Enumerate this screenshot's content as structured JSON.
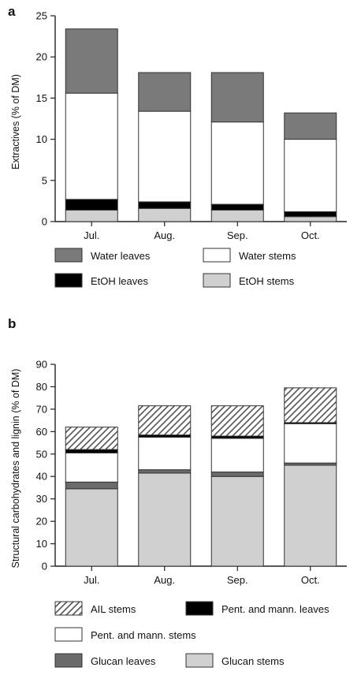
{
  "chart_data": [
    {
      "panel": "a",
      "type": "bar",
      "stacked": true,
      "categories": [
        "Jul.",
        "Aug.",
        "Sep.",
        "Oct."
      ],
      "ylabel": "Extractives (% of DM)",
      "ylim": [
        0,
        25
      ],
      "yticks": [
        0,
        5,
        10,
        15,
        20,
        25
      ],
      "series": [
        {
          "name": "EtOH stems",
          "values": [
            1.4,
            1.6,
            1.4,
            0.6
          ],
          "color": "#d0d0d0",
          "pattern": "solid"
        },
        {
          "name": "EtOH leaves",
          "values": [
            1.3,
            0.8,
            0.7,
            0.6
          ],
          "color": "#000000",
          "pattern": "solid"
        },
        {
          "name": "Water stems",
          "values": [
            12.9,
            11.0,
            10.0,
            8.8
          ],
          "color": "#ffffff",
          "pattern": "solid"
        },
        {
          "name": "Water leaves",
          "values": [
            7.8,
            4.7,
            6.0,
            3.2
          ],
          "color": "#7a7a7a",
          "pattern": "solid"
        }
      ],
      "legend_order": [
        "Water leaves",
        "Water stems",
        "EtOH leaves",
        "EtOH stems"
      ]
    },
    {
      "panel": "b",
      "type": "bar",
      "stacked": true,
      "categories": [
        "Jul.",
        "Aug.",
        "Sep.",
        "Oct."
      ],
      "ylabel": "Structural carbohydrates and lignin (% of DM)",
      "ylim": [
        0,
        90
      ],
      "yticks": [
        0,
        10,
        20,
        30,
        40,
        50,
        60,
        70,
        80,
        90
      ],
      "series": [
        {
          "name": "Glucan stems",
          "values": [
            34.5,
            41.5,
            40.0,
            45.0
          ],
          "color": "#d0d0d0",
          "pattern": "solid"
        },
        {
          "name": "Glucan leaves",
          "values": [
            3.0,
            1.5,
            2.0,
            1.0
          ],
          "color": "#6a6a6a",
          "pattern": "solid"
        },
        {
          "name": "Pent. and mann. stems",
          "values": [
            13.0,
            14.5,
            15.0,
            17.5
          ],
          "color": "#ffffff",
          "pattern": "solid"
        },
        {
          "name": "Pent. and mann. leaves",
          "values": [
            1.5,
            1.0,
            1.0,
            0.5
          ],
          "color": "#000000",
          "pattern": "solid"
        },
        {
          "name": "AIL stems",
          "values": [
            10.0,
            13.0,
            13.5,
            15.5
          ],
          "color": "#ffffff",
          "pattern": "hatch"
        }
      ],
      "legend_order": [
        "AIL stems",
        "Pent. and mann. leaves",
        "Pent. and mann. stems",
        "Glucan leaves",
        "Glucan stems"
      ]
    }
  ]
}
